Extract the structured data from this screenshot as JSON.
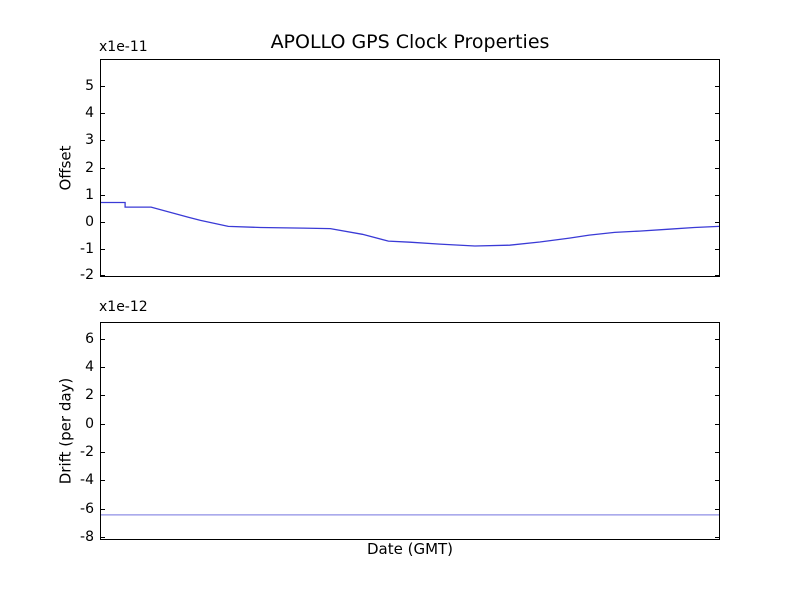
{
  "figure": {
    "title": "APOLLO GPS Clock Properties",
    "background": "#ffffff",
    "frame_color": "#000000",
    "text_color": "#000000"
  },
  "chart_data": [
    {
      "type": "line",
      "title": "APOLLO GPS Clock Properties",
      "ylabel": "Offset",
      "scale_label": "x1e-11",
      "xlabel": "",
      "yticks": [
        5,
        4,
        3,
        2,
        1,
        0,
        -1,
        -2
      ],
      "ylim": [
        -1.98,
        5.95
      ],
      "xlim": [
        0,
        1
      ],
      "xticks": [],
      "grid": false,
      "legend": false,
      "series": [
        {
          "name": "clock-offset",
          "color": "#3a3ad6",
          "points": [
            [
              0.0,
              0.72
            ],
            [
              0.039,
              0.72
            ],
            [
              0.039,
              0.55
            ],
            [
              0.081,
              0.55
            ],
            [
              0.142,
              0.17
            ],
            [
              0.161,
              0.06
            ],
            [
              0.206,
              -0.16
            ],
            [
              0.258,
              -0.2
            ],
            [
              0.327,
              -0.22
            ],
            [
              0.371,
              -0.24
            ],
            [
              0.423,
              -0.45
            ],
            [
              0.465,
              -0.7
            ],
            [
              0.5,
              -0.74
            ],
            [
              0.548,
              -0.81
            ],
            [
              0.605,
              -0.88
            ],
            [
              0.661,
              -0.85
            ],
            [
              0.71,
              -0.73
            ],
            [
              0.758,
              -0.59
            ],
            [
              0.79,
              -0.48
            ],
            [
              0.831,
              -0.38
            ],
            [
              0.871,
              -0.33
            ],
            [
              0.919,
              -0.26
            ],
            [
              0.96,
              -0.2
            ],
            [
              1.0,
              -0.16
            ]
          ]
        }
      ]
    },
    {
      "type": "line",
      "ylabel": "Drift (per day)",
      "scale_label": "x1e-12",
      "xlabel": "Date (GMT)",
      "yticks": [
        6,
        4,
        2,
        0,
        -2,
        -4,
        -6,
        -8
      ],
      "ylim": [
        -8.15,
        7.1
      ],
      "xlim": [
        0,
        1
      ],
      "xticks": [],
      "grid": false,
      "legend": false,
      "series": [
        {
          "name": "clock-drift",
          "color": "#8f8fe6",
          "points": [
            [
              0.0,
              -6.45
            ],
            [
              1.0,
              -6.45
            ]
          ]
        }
      ]
    }
  ]
}
